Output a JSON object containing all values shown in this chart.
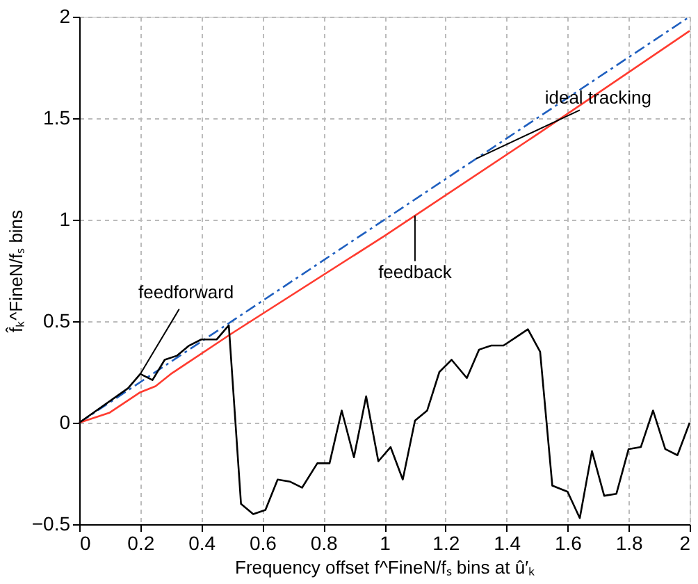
{
  "chart_data": {
    "type": "line",
    "xlabel": "Frequency offset f^FineN/fₛ bins at û′ₖ",
    "ylabel": "f̂ₖ^FineN/fₛ bins",
    "xlim": [
      0,
      2
    ],
    "ylim": [
      -0.5,
      2
    ],
    "xticks": [
      0,
      0.2,
      0.4,
      0.6,
      0.8,
      1,
      1.2,
      1.4,
      1.6,
      1.8,
      2
    ],
    "yticks": [
      -0.5,
      0,
      0.5,
      1,
      1.5,
      2
    ],
    "grid": true,
    "legend": false,
    "series": [
      {
        "name": "ideal tracking",
        "color": "#1f5fbf",
        "line_style": "dashed",
        "x": [
          0,
          2
        ],
        "values": [
          0,
          2
        ]
      },
      {
        "name": "feedback",
        "color": "#ff3b2f",
        "line_style": "solid",
        "x": [
          0,
          0.1,
          0.2,
          0.25,
          0.3,
          0.5,
          1,
          1.5,
          2
        ],
        "values": [
          0,
          0.05,
          0.15,
          0.18,
          0.24,
          0.44,
          0.92,
          1.42,
          1.93
        ]
      },
      {
        "name": "feedforward",
        "color": "#000000",
        "line_style": "solid",
        "x": [
          0,
          0.16,
          0.2,
          0.24,
          0.28,
          0.32,
          0.36,
          0.4,
          0.45,
          0.49,
          0.53,
          0.57,
          0.61,
          0.65,
          0.69,
          0.73,
          0.78,
          0.82,
          0.86,
          0.9,
          0.94,
          0.98,
          1.02,
          1.06,
          1.1,
          1.14,
          1.18,
          1.22,
          1.27,
          1.31,
          1.35,
          1.39,
          1.43,
          1.47,
          1.51,
          1.55,
          1.6,
          1.64,
          1.68,
          1.72,
          1.76,
          1.8,
          1.84,
          1.88,
          1.92,
          1.96,
          2
        ],
        "values": [
          0,
          0.17,
          0.24,
          0.21,
          0.31,
          0.33,
          0.38,
          0.41,
          0.41,
          0.48,
          -0.4,
          -0.45,
          -0.43,
          -0.28,
          -0.29,
          -0.32,
          -0.2,
          -0.2,
          0.06,
          -0.17,
          0.13,
          -0.19,
          -0.12,
          -0.28,
          0.01,
          0.06,
          0.25,
          0.31,
          0.22,
          0.36,
          0.38,
          0.38,
          0.42,
          0.46,
          0.35,
          -0.31,
          -0.34,
          -0.47,
          -0.14,
          -0.36,
          -0.35,
          -0.13,
          -0.12,
          0.06,
          -0.13,
          -0.16,
          0
        ]
      }
    ]
  }
}
